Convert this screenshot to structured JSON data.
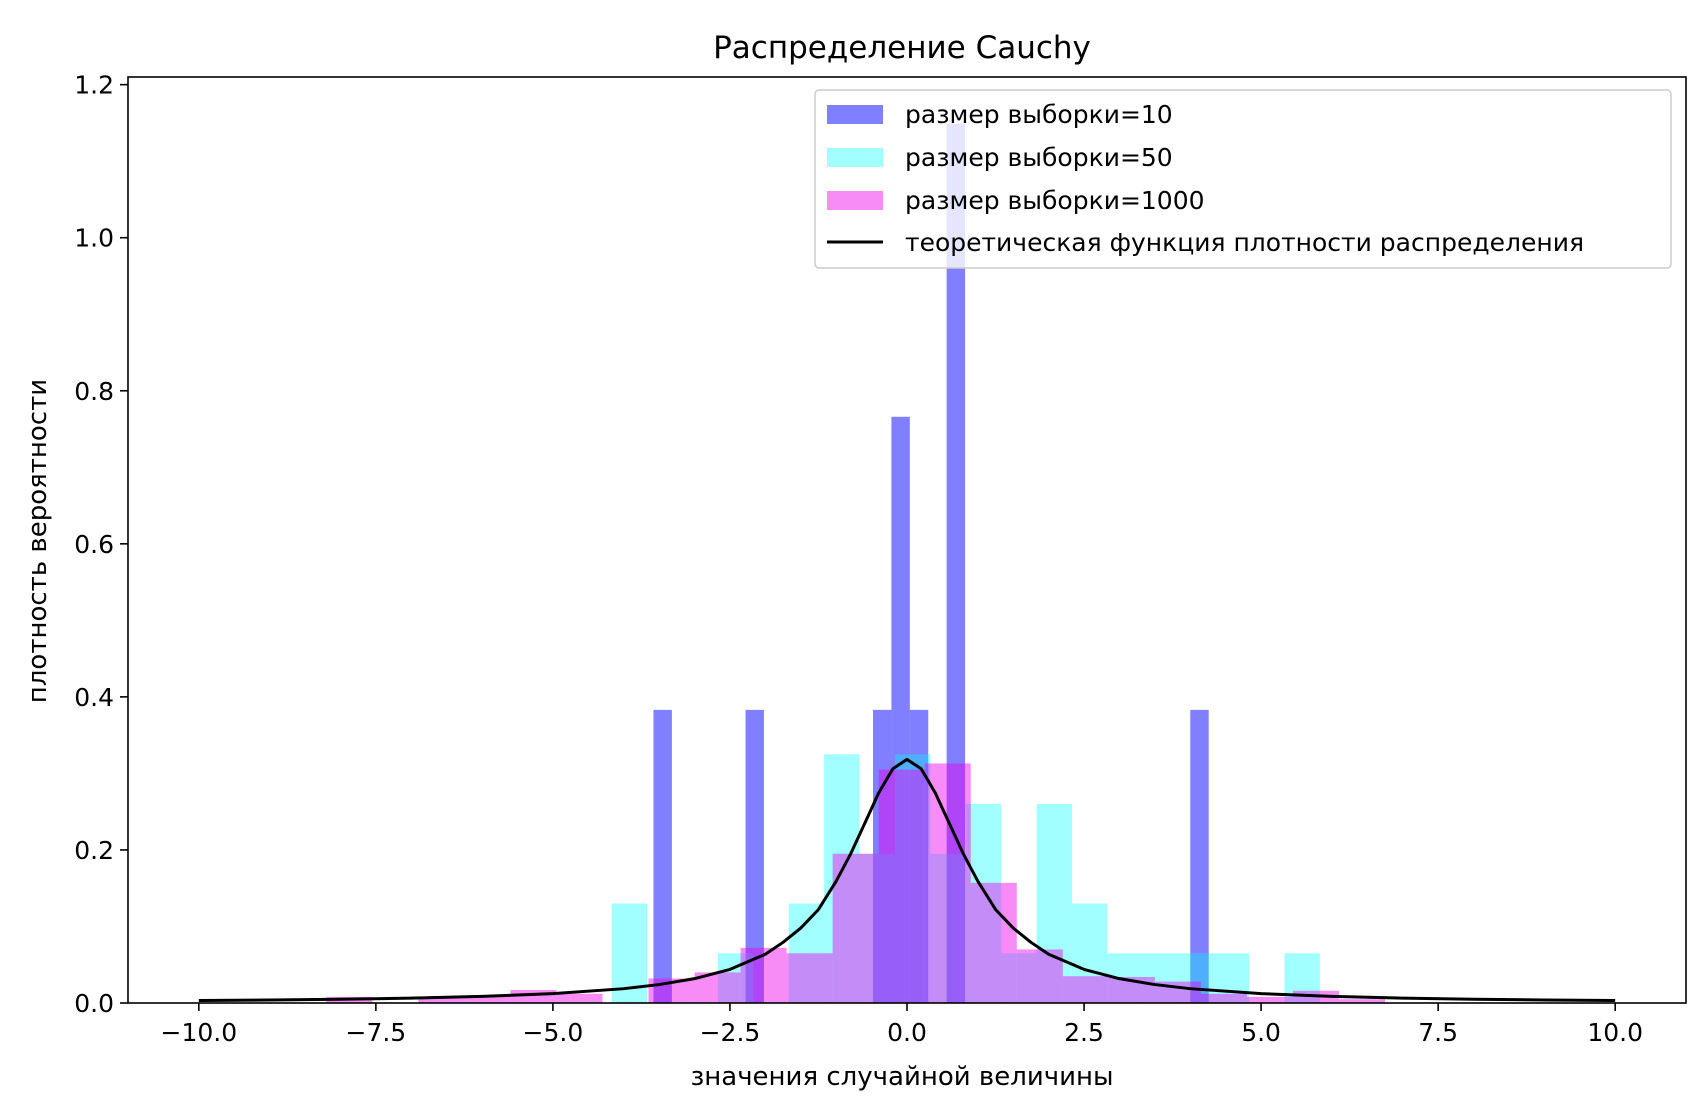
{
  "chart_data": {
    "type": "bar",
    "title": "Распределение Cauchy",
    "xlabel": "значения случайной величины",
    "ylabel": "плотность вероятности",
    "xlim": [
      -11.0,
      11.0
    ],
    "ylim": [
      0,
      1.21
    ],
    "xticks": [
      -10.0,
      -7.5,
      -5.0,
      -2.5,
      0.0,
      2.5,
      5.0,
      7.5,
      10.0
    ],
    "xtick_labels": [
      "−10.0",
      "−7.5",
      "−5.0",
      "−2.5",
      "0.0",
      "2.5",
      "5.0",
      "7.5",
      "10.0"
    ],
    "yticks": [
      0.0,
      0.2,
      0.4,
      0.6,
      0.8,
      1.0,
      1.2
    ],
    "ytick_labels": [
      "0.0",
      "0.2",
      "0.4",
      "0.6",
      "0.8",
      "1.0",
      "1.2"
    ],
    "grid": false,
    "legend_position": "top-right",
    "series": [
      {
        "name": "размер выборки=10",
        "kind": "hist",
        "color": "#0000ff",
        "alpha": 0.5,
        "bins": [
          {
            "x0": -3.58,
            "x1": -3.32,
            "y": 0.383
          },
          {
            "x0": -2.28,
            "x1": -2.02,
            "y": 0.383
          },
          {
            "x0": -0.48,
            "x1": -0.22,
            "y": 0.383
          },
          {
            "x0": -0.22,
            "x1": 0.04,
            "y": 0.766
          },
          {
            "x0": 0.04,
            "x1": 0.3,
            "y": 0.383
          },
          {
            "x0": 0.56,
            "x1": 0.82,
            "y": 1.149
          },
          {
            "x0": 4.0,
            "x1": 4.26,
            "y": 0.383
          }
        ]
      },
      {
        "name": "размер выборки=50",
        "kind": "hist",
        "color": "#00ffff",
        "alpha": 0.37,
        "bins": [
          {
            "x0": -4.17,
            "x1": -3.67,
            "y": 0.13
          },
          {
            "x0": -2.67,
            "x1": -2.17,
            "y": 0.065
          },
          {
            "x0": -1.67,
            "x1": -1.17,
            "y": 0.13
          },
          {
            "x0": -1.17,
            "x1": -0.67,
            "y": 0.325
          },
          {
            "x0": -0.67,
            "x1": -0.17,
            "y": 0.195
          },
          {
            "x0": -0.17,
            "x1": 0.33,
            "y": 0.325
          },
          {
            "x0": 0.33,
            "x1": 0.83,
            "y": 0.195
          },
          {
            "x0": 0.83,
            "x1": 1.33,
            "y": 0.26
          },
          {
            "x0": 1.33,
            "x1": 1.83,
            "y": 0.065
          },
          {
            "x0": 1.83,
            "x1": 2.33,
            "y": 0.26
          },
          {
            "x0": 2.33,
            "x1": 2.83,
            "y": 0.13
          },
          {
            "x0": 2.83,
            "x1": 3.33,
            "y": 0.065
          },
          {
            "x0": 3.33,
            "x1": 3.83,
            "y": 0.065
          },
          {
            "x0": 3.83,
            "x1": 4.33,
            "y": 0.065
          },
          {
            "x0": 4.33,
            "x1": 4.83,
            "y": 0.065
          },
          {
            "x0": 5.33,
            "x1": 5.83,
            "y": 0.065
          }
        ]
      },
      {
        "name": "размер выборки=1000",
        "kind": "hist",
        "color": "#ee00ee",
        "alpha": 0.45,
        "bins": [
          {
            "x0": -8.2,
            "x1": -7.55,
            "y": 0.008
          },
          {
            "x0": -6.9,
            "x1": -6.25,
            "y": 0.008
          },
          {
            "x0": -6.25,
            "x1": -5.6,
            "y": 0.01
          },
          {
            "x0": -5.6,
            "x1": -4.95,
            "y": 0.017
          },
          {
            "x0": -4.95,
            "x1": -4.3,
            "y": 0.012
          },
          {
            "x0": -3.65,
            "x1": -3.0,
            "y": 0.032
          },
          {
            "x0": -3.0,
            "x1": -2.35,
            "y": 0.04
          },
          {
            "x0": -2.35,
            "x1": -1.7,
            "y": 0.072
          },
          {
            "x0": -1.7,
            "x1": -1.05,
            "y": 0.065
          },
          {
            "x0": -1.05,
            "x1": -0.4,
            "y": 0.195
          },
          {
            "x0": -0.4,
            "x1": 0.25,
            "y": 0.305
          },
          {
            "x0": 0.25,
            "x1": 0.9,
            "y": 0.313
          },
          {
            "x0": 0.9,
            "x1": 1.55,
            "y": 0.157
          },
          {
            "x0": 1.55,
            "x1": 2.2,
            "y": 0.07
          },
          {
            "x0": 2.2,
            "x1": 2.85,
            "y": 0.035
          },
          {
            "x0": 2.85,
            "x1": 3.5,
            "y": 0.034
          },
          {
            "x0": 3.5,
            "x1": 4.15,
            "y": 0.028
          },
          {
            "x0": 4.15,
            "x1": 4.8,
            "y": 0.012
          },
          {
            "x0": 4.8,
            "x1": 5.45,
            "y": 0.008
          },
          {
            "x0": 5.45,
            "x1": 6.1,
            "y": 0.016
          },
          {
            "x0": 6.1,
            "x1": 6.75,
            "y": 0.005
          }
        ]
      },
      {
        "name": "теоретическая функция плотности распределения",
        "kind": "line",
        "color": "#000000",
        "x": [
          -10,
          -9,
          -8,
          -7,
          -6,
          -5,
          -4,
          -3.5,
          -3,
          -2.5,
          -2,
          -1.75,
          -1.5,
          -1.25,
          -1,
          -0.8,
          -0.6,
          -0.4,
          -0.2,
          0,
          0.2,
          0.4,
          0.6,
          0.8,
          1,
          1.25,
          1.5,
          1.75,
          2,
          2.5,
          3,
          3.5,
          4,
          5,
          6,
          7,
          8,
          9,
          10
        ],
        "y": [
          0.0032,
          0.0039,
          0.0049,
          0.0064,
          0.0086,
          0.0122,
          0.0187,
          0.0241,
          0.0318,
          0.0439,
          0.0637,
          0.0793,
          0.0979,
          0.1222,
          0.1592,
          0.1941,
          0.234,
          0.2744,
          0.3061,
          0.3183,
          0.3061,
          0.2744,
          0.234,
          0.1941,
          0.1592,
          0.1222,
          0.0979,
          0.0793,
          0.0637,
          0.0439,
          0.0318,
          0.0241,
          0.0187,
          0.0122,
          0.0086,
          0.0064,
          0.0049,
          0.0039,
          0.0032
        ]
      }
    ]
  }
}
